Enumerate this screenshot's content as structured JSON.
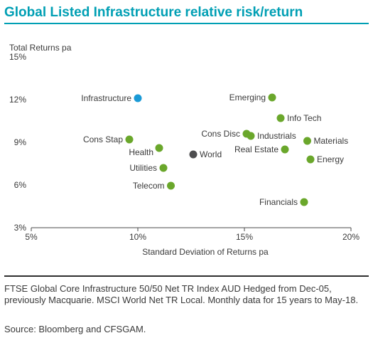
{
  "header": {
    "title": "Global Listed Infrastructure relative risk/return"
  },
  "chart_data": {
    "type": "scatter",
    "title": "Global Listed Infrastructure relative risk/return",
    "xlabel": "Standard Deviation of Returns pa",
    "ylabel": "Total Returns pa",
    "xlim": [
      5,
      20
    ],
    "ylim": [
      3,
      15
    ],
    "x_ticks": [
      "5%",
      "10%",
      "15%",
      "20%"
    ],
    "y_ticks": [
      "15%",
      "12%",
      "9%",
      "6%",
      "3%"
    ],
    "x_tick_values": [
      5,
      10,
      15,
      20
    ],
    "y_tick_values": [
      15,
      12,
      9,
      6,
      3
    ],
    "grid": false,
    "colors": {
      "highlight": "#1a9ad6",
      "world": "#4d4d4f",
      "sector": "#6aa72b"
    },
    "points": [
      {
        "label": "Infrastructure",
        "x": 10.0,
        "y": 12.1,
        "group": "highlight",
        "label_side": "left"
      },
      {
        "label": "Emerging",
        "x": 16.3,
        "y": 12.15,
        "group": "sector",
        "label_side": "left"
      },
      {
        "label": "Info Tech",
        "x": 16.7,
        "y": 10.7,
        "group": "sector",
        "label_side": "right"
      },
      {
        "label": "Cons Disc",
        "x": 15.1,
        "y": 9.6,
        "group": "sector",
        "label_side": "left"
      },
      {
        "label": "Industrials",
        "x": 15.3,
        "y": 9.45,
        "group": "sector",
        "label_side": "right"
      },
      {
        "label": "Cons Stap",
        "x": 9.6,
        "y": 9.2,
        "group": "sector",
        "label_side": "left"
      },
      {
        "label": "Materials",
        "x": 17.95,
        "y": 9.1,
        "group": "sector",
        "label_side": "right"
      },
      {
        "label": "Real Estate",
        "x": 16.9,
        "y": 8.5,
        "group": "sector",
        "label_side": "left"
      },
      {
        "label": "Health",
        "x": 11.0,
        "y": 8.6,
        "group": "sector",
        "label_side": "left-below"
      },
      {
        "label": "World",
        "x": 12.6,
        "y": 8.15,
        "group": "world",
        "label_side": "right"
      },
      {
        "label": "Energy",
        "x": 18.1,
        "y": 7.8,
        "group": "sector",
        "label_side": "right"
      },
      {
        "label": "Utilities",
        "x": 11.2,
        "y": 7.2,
        "group": "sector",
        "label_side": "left"
      },
      {
        "label": "Telecom",
        "x": 11.55,
        "y": 5.95,
        "group": "sector",
        "label_side": "left"
      },
      {
        "label": "Financials",
        "x": 17.8,
        "y": 4.8,
        "group": "sector",
        "label_side": "left"
      }
    ]
  },
  "footnote": "FTSE Global Core Infrastructure 50/50 Net TR Index AUD Hedged from Dec-05, previously Macquarie. MSCI World Net TR Local. Monthly data for 15 years to May-18.",
  "source": "Source: Bloomberg and CFSGAM."
}
